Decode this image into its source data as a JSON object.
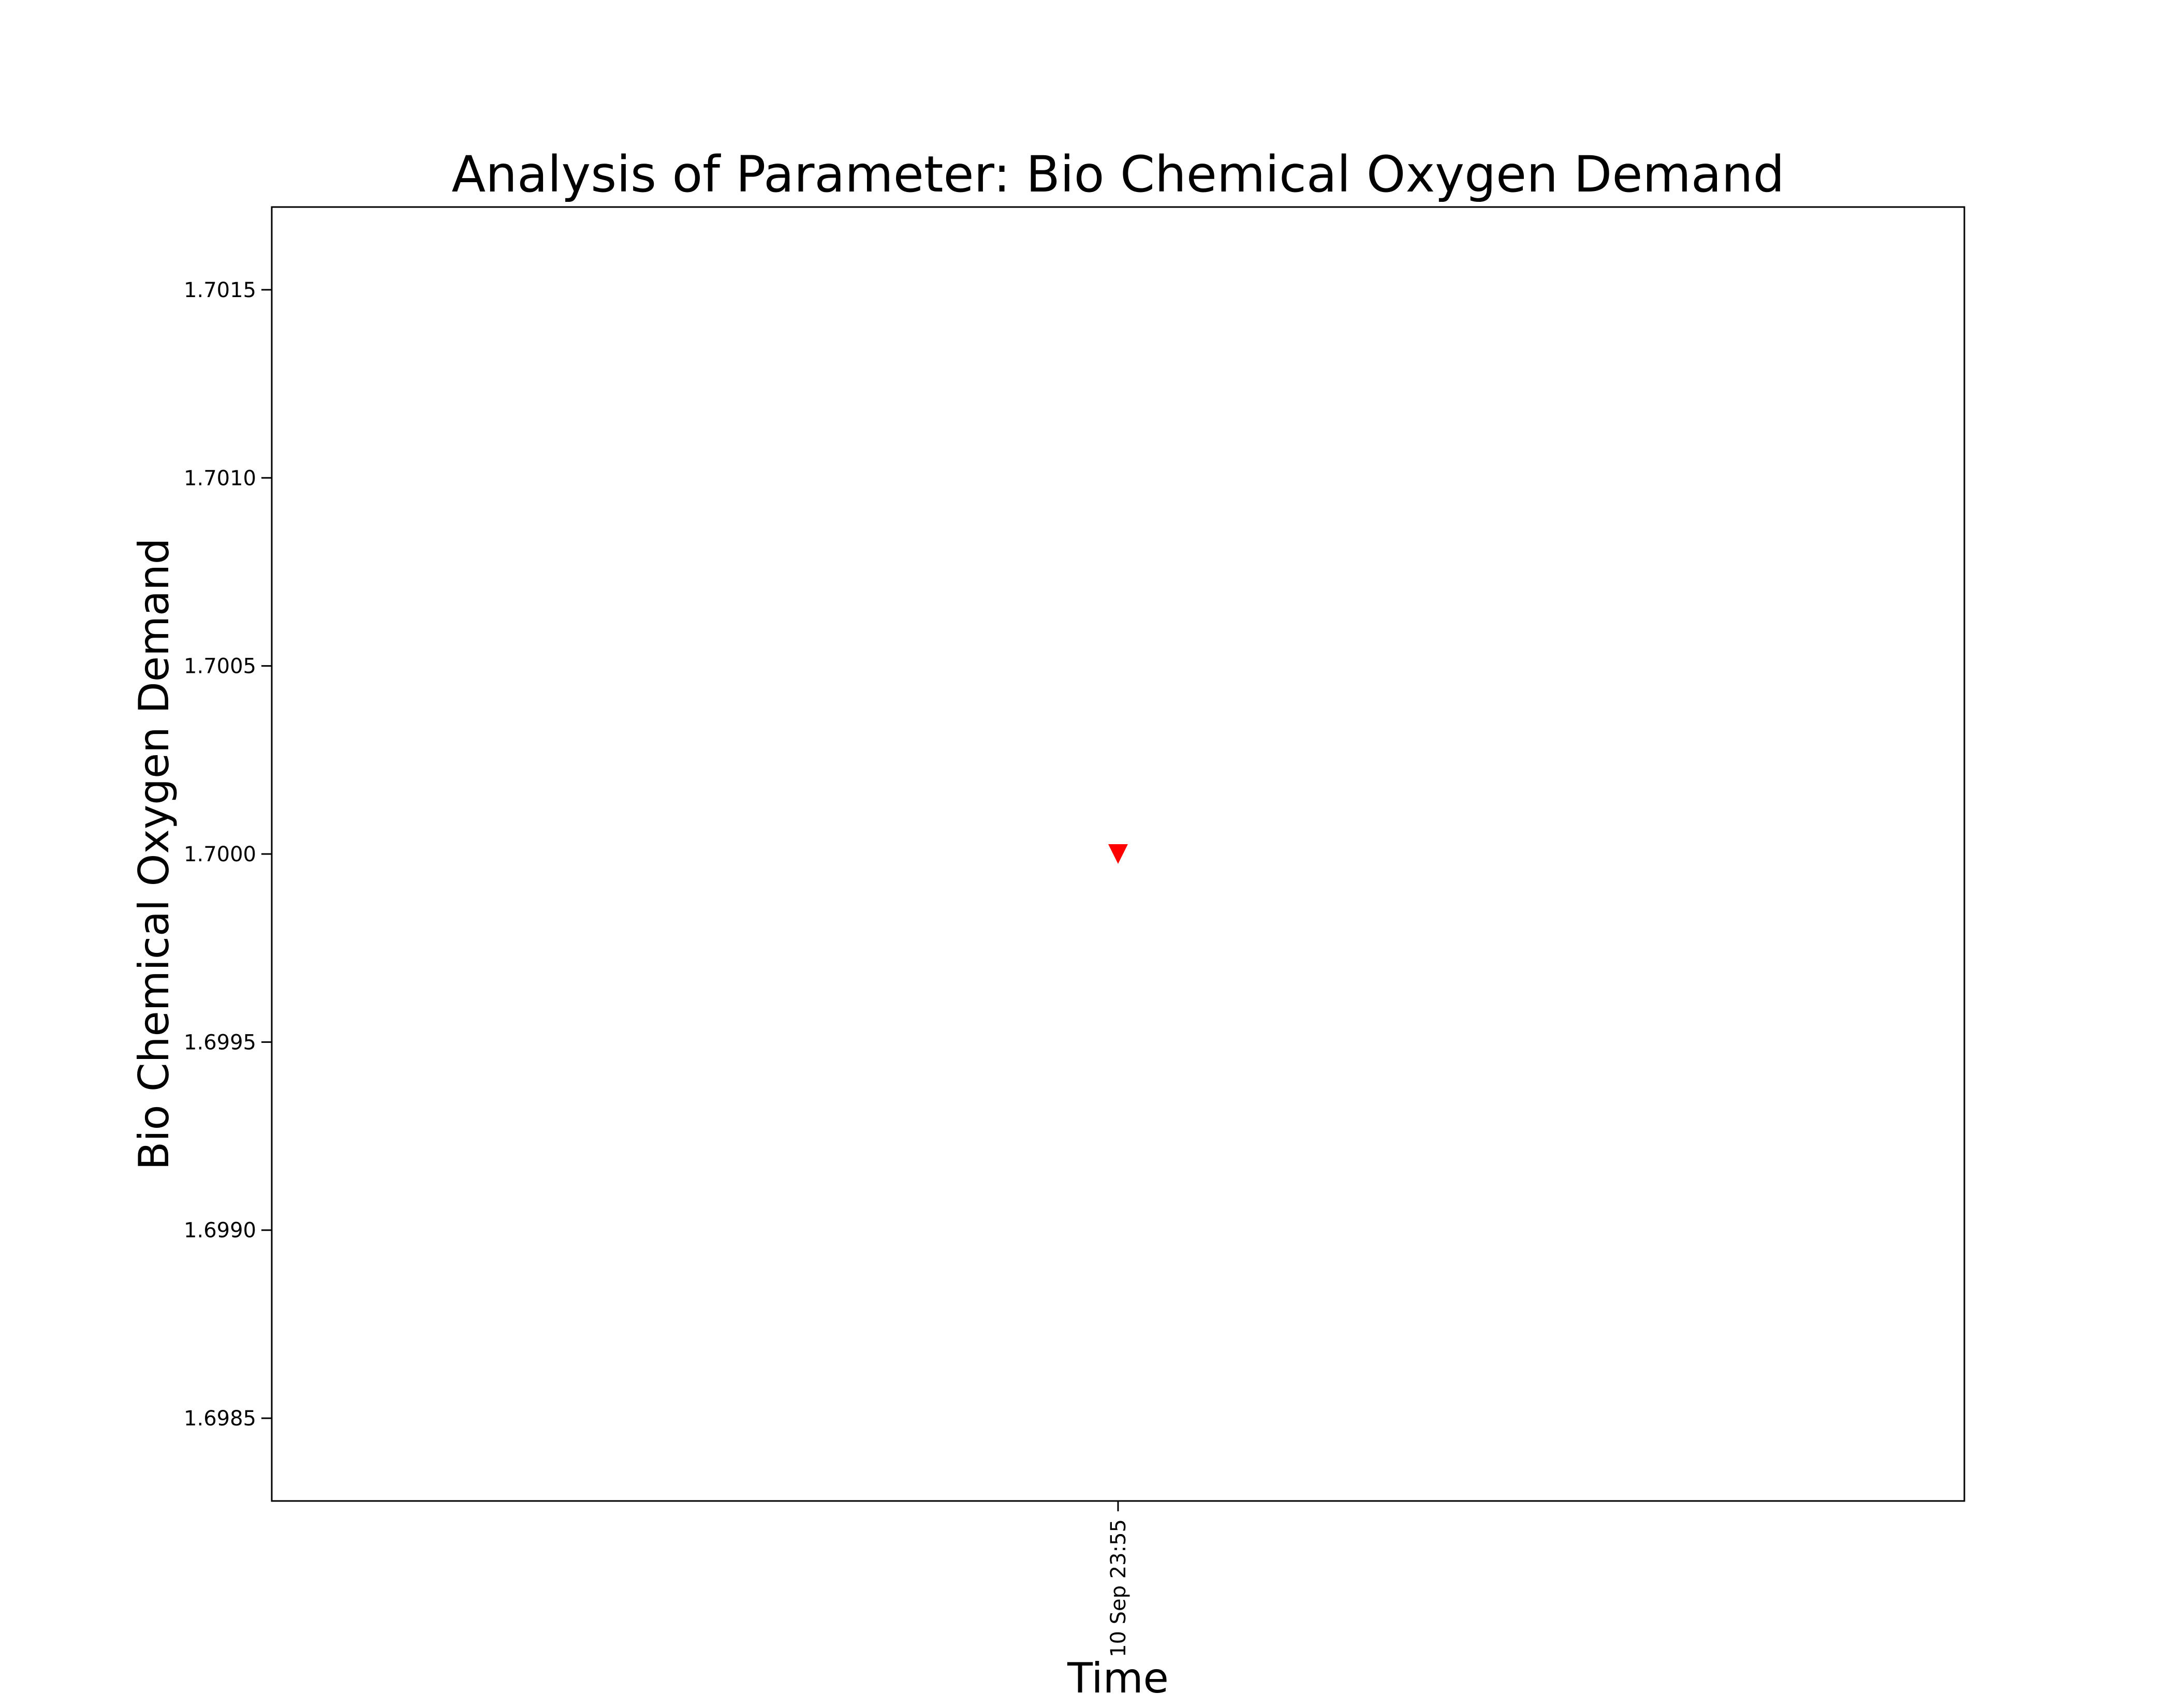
{
  "chart_data": {
    "type": "scatter",
    "title": "Analysis of Parameter: Bio Chemical Oxygen Demand",
    "xlabel": "Time",
    "ylabel": "Bio Chemical Oxygen Demand",
    "x_ticks": [
      "10 Sep 23:55"
    ],
    "y_ticks": [
      1.6985,
      1.699,
      1.6995,
      1.7,
      1.7005,
      1.701,
      1.7015
    ],
    "ylim": [
      1.69828,
      1.70172
    ],
    "grid": false,
    "legend": "none",
    "series": [
      {
        "marker": "triangle-down",
        "color": "#ff0000",
        "points": [
          {
            "x": "10 Sep 23:55",
            "y": 1.7
          }
        ]
      }
    ]
  }
}
